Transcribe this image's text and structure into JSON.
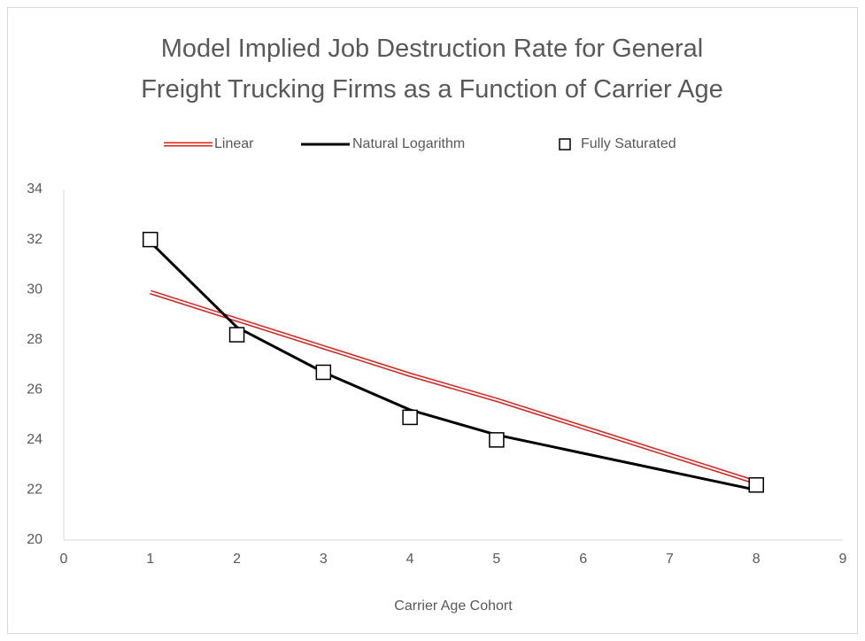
{
  "chart_data": {
    "type": "line",
    "title": "Model Implied Job Destruction Rate for General Freight Trucking Firms as a Function of Carrier Age",
    "x_label": "Carrier Age Cohort",
    "x": [
      1,
      2,
      3,
      4,
      5,
      8
    ],
    "series": [
      {
        "name": "Linear",
        "color": "#e0201b",
        "style": "double-line",
        "values": [
          29.9,
          28.8,
          27.7,
          26.6,
          25.6,
          22.3
        ]
      },
      {
        "name": "Natural Logarithm",
        "color": "#000000",
        "style": "line",
        "values": [
          31.9,
          28.5,
          26.7,
          25.2,
          24.2,
          22.0
        ]
      },
      {
        "name": "Fully Saturated",
        "color": "#000000",
        "style": "square-marker",
        "values": [
          32.0,
          28.2,
          26.7,
          24.9,
          24.0,
          22.2
        ]
      }
    ],
    "xlim": [
      0,
      9
    ],
    "xticks": [
      0,
      1,
      2,
      3,
      4,
      5,
      6,
      7,
      8,
      9
    ],
    "ylim": [
      20,
      34
    ],
    "yticks": [
      20,
      22,
      24,
      26,
      28,
      30,
      32,
      34
    ],
    "legend": "top",
    "grid": false
  }
}
